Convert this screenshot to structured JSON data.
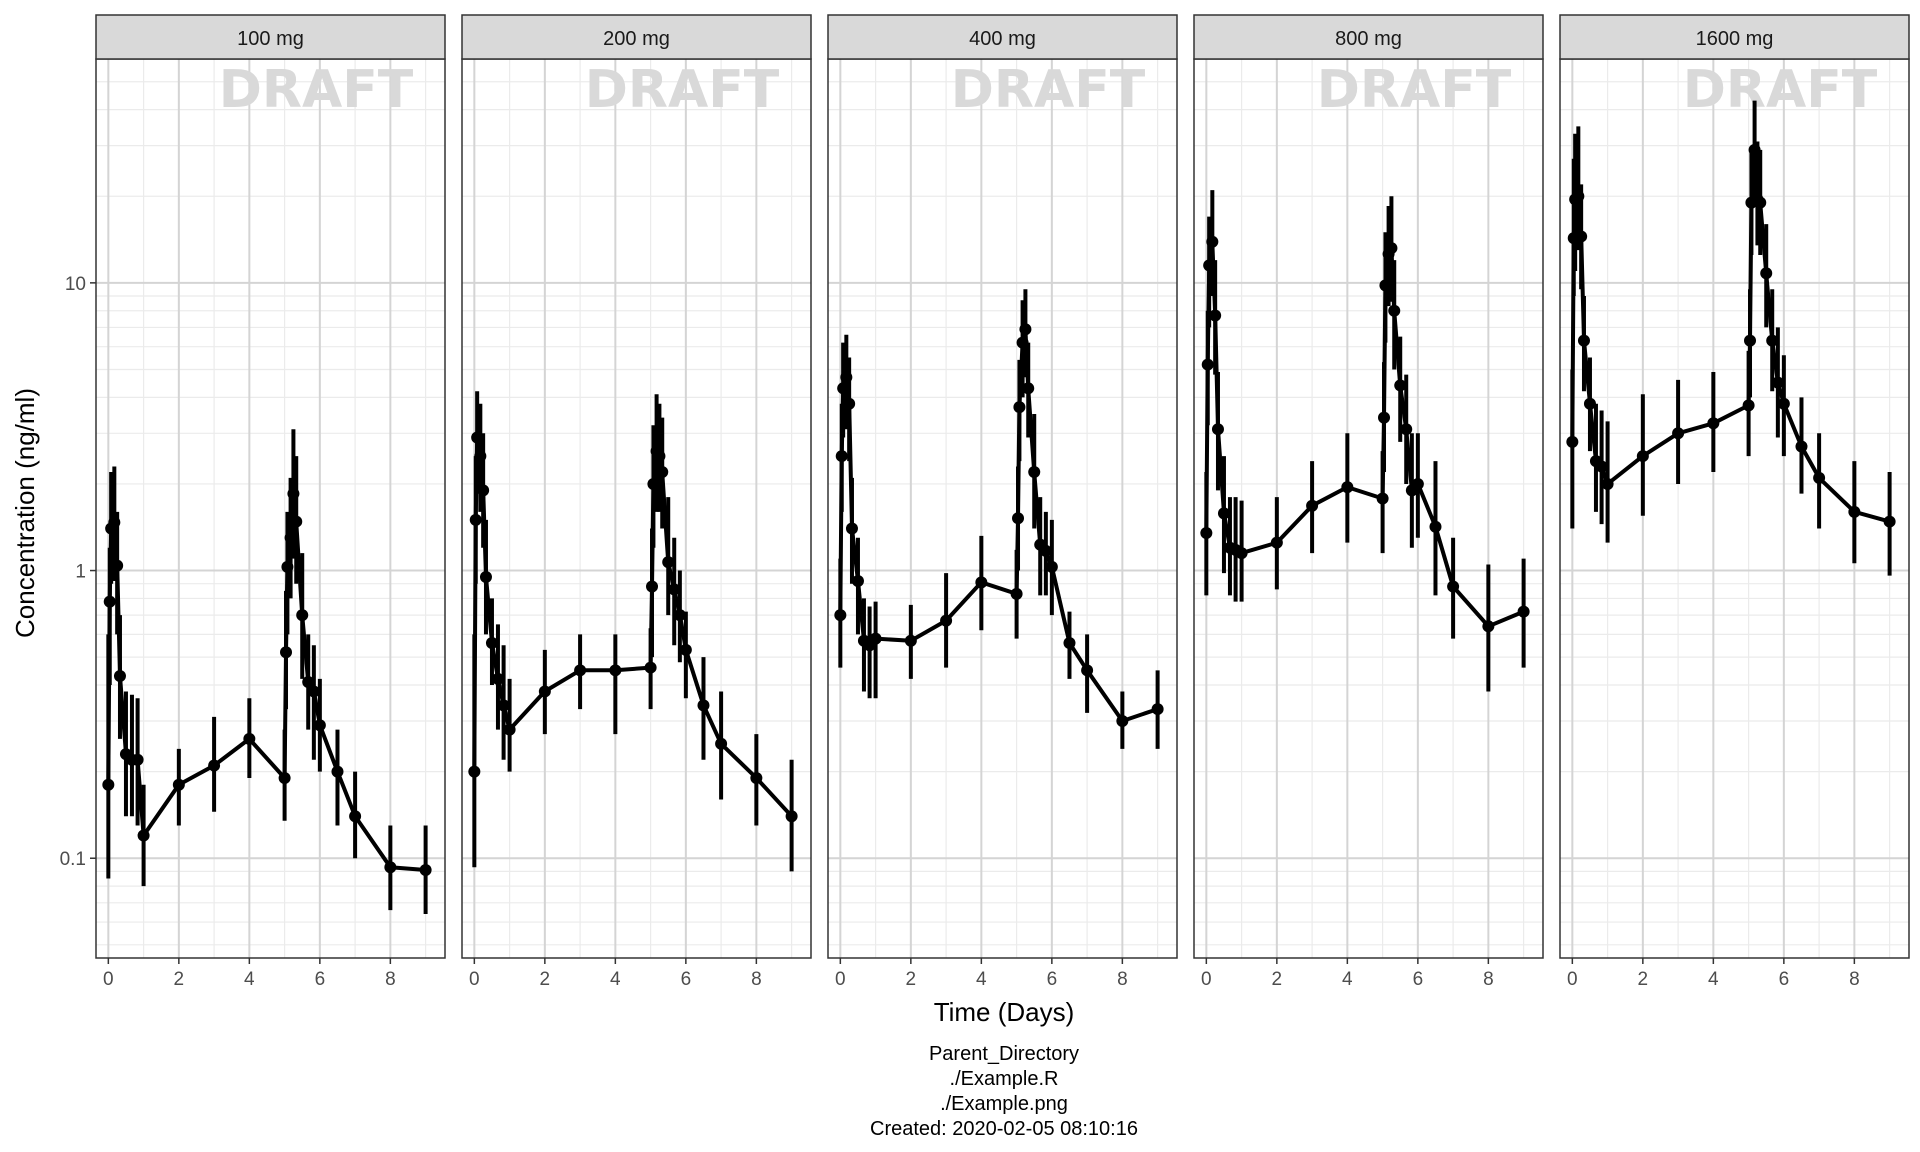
{
  "chart_data": {
    "type": "line",
    "facet_type": "facet_wrap",
    "panels": [
      "100 mg",
      "200 mg",
      "400 mg",
      "800 mg",
      "1600 mg"
    ],
    "watermark": "DRAFT",
    "xlabel": "Time (Days)",
    "ylabel": "Concentration (ng/ml)",
    "xlim": [
      -0.35,
      9.55
    ],
    "x_ticks": [
      0,
      2,
      4,
      6,
      8
    ],
    "x_tick_labels": [
      "0",
      "2",
      "4",
      "6",
      "8"
    ],
    "y_scale": "log10",
    "ylim": [
      0.045,
      60
    ],
    "y_ticks": [
      0.1,
      1,
      10
    ],
    "y_tick_labels": [
      "0.1",
      "1",
      "10"
    ],
    "grid": true,
    "theme": "bw",
    "line_color": "#000000",
    "series": [
      {
        "panel": "100 mg",
        "x": [
          0,
          0.04,
          0.08,
          0.17,
          0.25,
          0.33,
          0.5,
          0.67,
          0.83,
          1,
          2,
          3,
          4,
          5,
          5.04,
          5.08,
          5.17,
          5.25,
          5.33,
          5.5,
          5.67,
          5.83,
          6,
          6.5,
          7,
          8,
          9
        ],
        "y": [
          0.18,
          0.78,
          1.4,
          1.47,
          1.04,
          0.43,
          0.23,
          0.22,
          0.22,
          0.12,
          0.18,
          0.21,
          0.26,
          0.19,
          0.52,
          1.03,
          1.3,
          1.85,
          1.48,
          0.7,
          0.41,
          0.38,
          0.29,
          0.2,
          0.14,
          0.093,
          0.091
        ],
        "lower": [
          0.085,
          0.4,
          0.9,
          0.92,
          0.6,
          0.26,
          0.14,
          0.14,
          0.13,
          0.08,
          0.13,
          0.145,
          0.19,
          0.135,
          0.33,
          0.6,
          0.8,
          1.1,
          0.9,
          0.42,
          0.28,
          0.22,
          0.2,
          0.13,
          0.1,
          0.066,
          0.064
        ],
        "upper": [
          0.6,
          1.2,
          2.2,
          2.3,
          1.6,
          0.7,
          0.38,
          0.37,
          0.36,
          0.18,
          0.24,
          0.31,
          0.36,
          0.28,
          0.85,
          1.6,
          2.1,
          3.1,
          2.5,
          1.15,
          0.6,
          0.55,
          0.42,
          0.28,
          0.2,
          0.13,
          0.13
        ]
      },
      {
        "panel": "200 mg",
        "x": [
          0,
          0.04,
          0.08,
          0.17,
          0.25,
          0.33,
          0.5,
          0.67,
          0.83,
          1,
          2,
          3,
          4,
          5,
          5.04,
          5.08,
          5.17,
          5.25,
          5.33,
          5.5,
          5.67,
          5.83,
          6,
          6.5,
          7,
          8,
          9
        ],
        "y": [
          0.2,
          1.5,
          2.9,
          2.5,
          1.9,
          0.95,
          0.56,
          0.42,
          0.34,
          0.28,
          0.38,
          0.45,
          0.45,
          0.46,
          0.88,
          2.0,
          2.6,
          2.5,
          2.2,
          1.07,
          0.86,
          0.7,
          0.53,
          0.34,
          0.25,
          0.19,
          0.14
        ],
        "lower": [
          0.093,
          0.9,
          1.9,
          1.6,
          1.2,
          0.6,
          0.4,
          0.28,
          0.22,
          0.2,
          0.27,
          0.33,
          0.27,
          0.33,
          0.5,
          1.2,
          1.6,
          1.6,
          1.4,
          0.7,
          0.55,
          0.48,
          0.36,
          0.22,
          0.16,
          0.13,
          0.09
        ],
        "upper": [
          0.6,
          2.5,
          4.2,
          3.8,
          3.0,
          1.5,
          0.8,
          0.65,
          0.55,
          0.42,
          0.53,
          0.6,
          0.6,
          0.63,
          1.4,
          3.2,
          4.1,
          3.8,
          3.4,
          1.8,
          1.3,
          1.0,
          0.72,
          0.5,
          0.38,
          0.27,
          0.22
        ]
      },
      {
        "panel": "400 mg",
        "x": [
          0,
          0.04,
          0.08,
          0.17,
          0.25,
          0.33,
          0.5,
          0.67,
          0.83,
          1,
          2,
          3,
          4,
          5,
          5.04,
          5.08,
          5.17,
          5.25,
          5.33,
          5.5,
          5.67,
          5.83,
          6,
          6.5,
          7,
          8,
          9
        ],
        "y": [
          0.7,
          2.5,
          4.3,
          4.7,
          3.8,
          1.4,
          0.92,
          0.57,
          0.55,
          0.58,
          0.57,
          0.67,
          0.91,
          0.83,
          1.52,
          3.7,
          6.2,
          6.9,
          4.3,
          2.2,
          1.23,
          1.17,
          1.03,
          0.56,
          0.45,
          0.3,
          0.33
        ],
        "lower": [
          0.46,
          1.6,
          2.9,
          3.1,
          2.4,
          0.9,
          0.6,
          0.38,
          0.36,
          0.36,
          0.42,
          0.46,
          0.62,
          0.58,
          1.0,
          2.4,
          4.0,
          4.7,
          2.9,
          1.4,
          0.82,
          0.82,
          0.7,
          0.42,
          0.32,
          0.24,
          0.24
        ],
        "upper": [
          1.1,
          3.8,
          6.2,
          6.6,
          5.5,
          2.1,
          1.3,
          0.8,
          0.75,
          0.78,
          0.76,
          0.98,
          1.32,
          1.18,
          2.3,
          5.4,
          8.7,
          9.5,
          6.2,
          3.5,
          1.8,
          1.6,
          1.5,
          0.72,
          0.6,
          0.38,
          0.45
        ]
      },
      {
        "panel": "800 mg",
        "x": [
          0,
          0.04,
          0.08,
          0.17,
          0.25,
          0.33,
          0.5,
          0.67,
          0.83,
          1,
          2,
          3,
          4,
          5,
          5.04,
          5.08,
          5.17,
          5.25,
          5.33,
          5.5,
          5.67,
          5.83,
          6,
          6.5,
          7,
          8,
          9
        ],
        "y": [
          1.35,
          5.2,
          11.5,
          13.9,
          7.7,
          3.1,
          1.58,
          1.2,
          1.18,
          1.15,
          1.25,
          1.68,
          1.95,
          1.78,
          3.4,
          9.8,
          12.6,
          13.2,
          8.0,
          4.4,
          3.1,
          1.9,
          2.0,
          1.42,
          0.88,
          0.64,
          0.72
        ],
        "lower": [
          0.82,
          3.2,
          7.0,
          9.0,
          4.8,
          1.9,
          0.98,
          0.82,
          0.78,
          0.78,
          0.86,
          1.15,
          1.25,
          1.15,
          2.2,
          6.2,
          8.3,
          8.6,
          5.0,
          2.8,
          2.0,
          1.2,
          1.3,
          0.82,
          0.58,
          0.38,
          0.46
        ],
        "upper": [
          2.2,
          8.0,
          17.0,
          21.0,
          12.0,
          4.9,
          2.5,
          1.8,
          1.8,
          1.75,
          1.8,
          2.4,
          3.0,
          2.6,
          5.3,
          15.0,
          18.5,
          20.0,
          12.0,
          6.5,
          4.8,
          3.0,
          3.0,
          2.4,
          1.3,
          1.05,
          1.1
        ]
      },
      {
        "panel": "1600 mg",
        "x": [
          0,
          0.04,
          0.08,
          0.17,
          0.25,
          0.33,
          0.5,
          0.67,
          0.83,
          1,
          2,
          3,
          4,
          5,
          5.04,
          5.08,
          5.17,
          5.25,
          5.33,
          5.5,
          5.67,
          5.83,
          6,
          6.5,
          7,
          8,
          9
        ],
        "y": [
          2.8,
          14.3,
          19.5,
          20.0,
          14.5,
          6.3,
          3.8,
          2.4,
          2.3,
          2.0,
          2.5,
          3.0,
          3.25,
          3.75,
          6.3,
          19.0,
          29.0,
          19.5,
          19.0,
          10.8,
          6.3,
          4.5,
          3.8,
          2.7,
          2.1,
          1.6,
          1.48
        ],
        "lower": [
          1.4,
          9.0,
          11.0,
          13.0,
          9.5,
          4.2,
          2.6,
          1.6,
          1.45,
          1.25,
          1.55,
          2.0,
          2.2,
          2.5,
          4.0,
          12.5,
          19.0,
          13.5,
          12.5,
          7.0,
          4.2,
          2.9,
          2.5,
          1.85,
          1.4,
          1.06,
          0.96
        ],
        "upper": [
          5.0,
          27.0,
          33.0,
          35.0,
          22.0,
          9.0,
          5.5,
          3.8,
          3.6,
          3.3,
          4.1,
          4.6,
          4.9,
          5.8,
          9.5,
          29.0,
          43.0,
          31.0,
          29.0,
          16.0,
          9.5,
          7.0,
          5.6,
          4.0,
          3.0,
          2.4,
          2.2
        ]
      }
    ]
  },
  "caption": [
    "Parent_Directory",
    "./Example.R",
    "./Example.png",
    "Created: 2020-02-05 08:10:16"
  ]
}
